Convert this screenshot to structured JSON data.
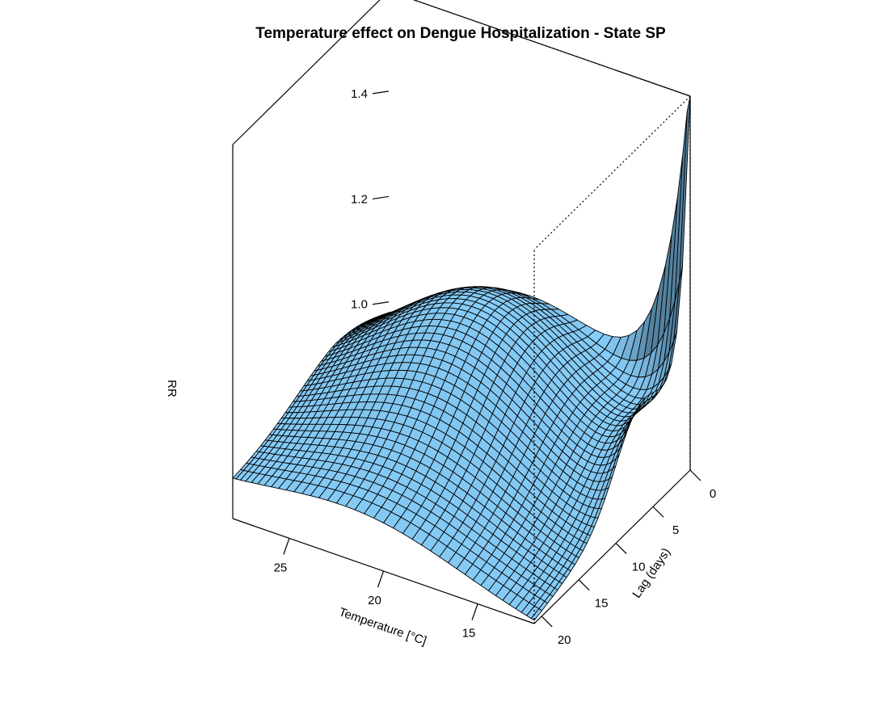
{
  "colors": {
    "surface_light": "#87CEFA",
    "surface_dark": "#4A7590",
    "mesh_line": "#000000",
    "box_line": "#000000",
    "background": "#ffffff"
  },
  "chart_data": {
    "type": "surface3d",
    "title": "Temperature effect on Dengue Hospitalization - State SP",
    "x_axis": {
      "label": "Temperature [°C]",
      "range": [
        12,
        28
      ],
      "ticks": [
        25,
        20,
        15
      ]
    },
    "y_axis": {
      "label": "Lag (days)",
      "range": [
        0,
        21
      ],
      "ticks": [
        0,
        5,
        10,
        15,
        20
      ]
    },
    "z_axis": {
      "label": "RR",
      "range": [
        0.88,
        1.59
      ],
      "ticks": [
        1.0,
        1.2,
        1.4
      ]
    },
    "x_ticks": [
      "25",
      "20",
      "15"
    ],
    "y_ticks": [
      "0",
      "5",
      "10",
      "15",
      "20"
    ],
    "z_ticks": [
      "1.0",
      "1.2",
      "1.4"
    ],
    "surface_samples": [
      {
        "temperature": 28,
        "lag": 0,
        "rr": 1.32
      },
      {
        "temperature": 28,
        "lag": 21,
        "rr": 0.88
      },
      {
        "temperature": 12,
        "lag": 0,
        "rr": 1.59
      },
      {
        "temperature": 12,
        "lag": 21,
        "rr": 0.96
      },
      {
        "temperature": 20,
        "lag": 0,
        "rr": 1.0
      },
      {
        "temperature": 24,
        "lag": 6,
        "rr": 1.22
      },
      {
        "temperature": 15,
        "lag": 19,
        "rr": 0.93
      }
    ]
  }
}
